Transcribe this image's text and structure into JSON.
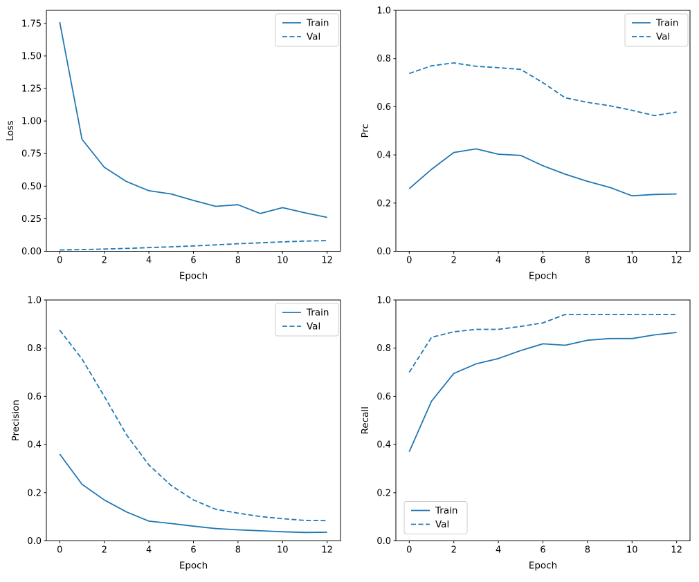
{
  "figure": {
    "background_color": "#ffffff",
    "line_color": "#1f77b4",
    "spine_color": "#000000",
    "legend_border_color": "#cccccc",
    "legend_background": "#ffffff",
    "xlabel": "Epoch",
    "legend_labels": {
      "train": "Train",
      "val": "Val"
    }
  },
  "chart_data": [
    {
      "id": "loss",
      "type": "line",
      "title": "",
      "xlabel": "Epoch",
      "ylabel": "Loss",
      "x": [
        0,
        1,
        2,
        3,
        4,
        5,
        6,
        7,
        8,
        9,
        10,
        11,
        12
      ],
      "series": [
        {
          "name": "Train",
          "style": "solid",
          "values": [
            1.76,
            0.86,
            0.645,
            0.535,
            0.465,
            0.44,
            0.39,
            0.345,
            0.357,
            0.29,
            0.335,
            0.295,
            0.26
          ]
        },
        {
          "name": "Val",
          "style": "dashed",
          "values": [
            0.01,
            0.013,
            0.017,
            0.022,
            0.028,
            0.034,
            0.041,
            0.049,
            0.058,
            0.065,
            0.072,
            0.078,
            0.082
          ]
        }
      ],
      "xlim": [
        -0.6,
        12.6
      ],
      "ylim": [
        0,
        1.85
      ],
      "xticks": [
        0,
        2,
        4,
        6,
        8,
        10,
        12
      ],
      "xtick_labels": [
        "0",
        "2",
        "4",
        "6",
        "8",
        "10",
        "12"
      ],
      "yticks": [
        0.0,
        0.25,
        0.5,
        0.75,
        1.0,
        1.25,
        1.5,
        1.75
      ],
      "ytick_labels": [
        "0.00",
        "0.25",
        "0.50",
        "0.75",
        "1.00",
        "1.25",
        "1.50",
        "1.75"
      ],
      "grid": false,
      "legend_position": "upper right"
    },
    {
      "id": "prc",
      "type": "line",
      "title": "",
      "xlabel": "Epoch",
      "ylabel": "Prc",
      "x": [
        0,
        1,
        2,
        3,
        4,
        5,
        6,
        7,
        8,
        9,
        10,
        11,
        12
      ],
      "series": [
        {
          "name": "Train",
          "style": "solid",
          "values": [
            0.26,
            0.34,
            0.41,
            0.425,
            0.403,
            0.398,
            0.355,
            0.32,
            0.29,
            0.265,
            0.23,
            0.236,
            0.238
          ]
        },
        {
          "name": "Val",
          "style": "dashed",
          "values": [
            0.738,
            0.77,
            0.782,
            0.768,
            0.762,
            0.755,
            0.7,
            0.637,
            0.618,
            0.604,
            0.585,
            0.563,
            0.578
          ]
        }
      ],
      "xlim": [
        -0.6,
        12.6
      ],
      "ylim": [
        0,
        1.0
      ],
      "xticks": [
        0,
        2,
        4,
        6,
        8,
        10,
        12
      ],
      "xtick_labels": [
        "0",
        "2",
        "4",
        "6",
        "8",
        "10",
        "12"
      ],
      "yticks": [
        0.0,
        0.2,
        0.4,
        0.6,
        0.8,
        1.0
      ],
      "ytick_labels": [
        "0.0",
        "0.2",
        "0.4",
        "0.6",
        "0.8",
        "1.0"
      ],
      "grid": false,
      "legend_position": "upper right"
    },
    {
      "id": "precision",
      "type": "line",
      "title": "",
      "xlabel": "Epoch",
      "ylabel": "Precision",
      "x": [
        0,
        1,
        2,
        3,
        4,
        5,
        6,
        7,
        8,
        9,
        10,
        11,
        12
      ],
      "series": [
        {
          "name": "Train",
          "style": "solid",
          "values": [
            0.36,
            0.235,
            0.17,
            0.12,
            0.082,
            0.072,
            0.061,
            0.051,
            0.046,
            0.042,
            0.038,
            0.035,
            0.036
          ]
        },
        {
          "name": "Val",
          "style": "dashed",
          "values": [
            0.875,
            0.755,
            0.6,
            0.44,
            0.315,
            0.23,
            0.17,
            0.131,
            0.115,
            0.101,
            0.092,
            0.085,
            0.084
          ]
        }
      ],
      "xlim": [
        -0.6,
        12.6
      ],
      "ylim": [
        0,
        1.0
      ],
      "xticks": [
        0,
        2,
        4,
        6,
        8,
        10,
        12
      ],
      "xtick_labels": [
        "0",
        "2",
        "4",
        "6",
        "8",
        "10",
        "12"
      ],
      "yticks": [
        0.0,
        0.2,
        0.4,
        0.6,
        0.8,
        1.0
      ],
      "ytick_labels": [
        "0.0",
        "0.2",
        "0.4",
        "0.6",
        "0.8",
        "1.0"
      ],
      "grid": false,
      "legend_position": "upper right"
    },
    {
      "id": "recall",
      "type": "line",
      "title": "",
      "xlabel": "Epoch",
      "ylabel": "Recall",
      "x": [
        0,
        1,
        2,
        3,
        4,
        5,
        6,
        7,
        8,
        9,
        10,
        11,
        12
      ],
      "series": [
        {
          "name": "Train",
          "style": "solid",
          "values": [
            0.37,
            0.58,
            0.695,
            0.735,
            0.757,
            0.79,
            0.818,
            0.812,
            0.833,
            0.84,
            0.84,
            0.855,
            0.865
          ]
        },
        {
          "name": "Val",
          "style": "dashed",
          "values": [
            0.7,
            0.845,
            0.868,
            0.878,
            0.878,
            0.89,
            0.905,
            0.94,
            0.94,
            0.94,
            0.94,
            0.94,
            0.94
          ]
        }
      ],
      "xlim": [
        -0.6,
        12.6
      ],
      "ylim": [
        0,
        1.0
      ],
      "xticks": [
        0,
        2,
        4,
        6,
        8,
        10,
        12
      ],
      "xtick_labels": [
        "0",
        "2",
        "4",
        "6",
        "8",
        "10",
        "12"
      ],
      "yticks": [
        0.0,
        0.2,
        0.4,
        0.6,
        0.8,
        1.0
      ],
      "ytick_labels": [
        "0.0",
        "0.2",
        "0.4",
        "0.6",
        "0.8",
        "1.0"
      ],
      "grid": false,
      "legend_position": "lower left"
    }
  ]
}
